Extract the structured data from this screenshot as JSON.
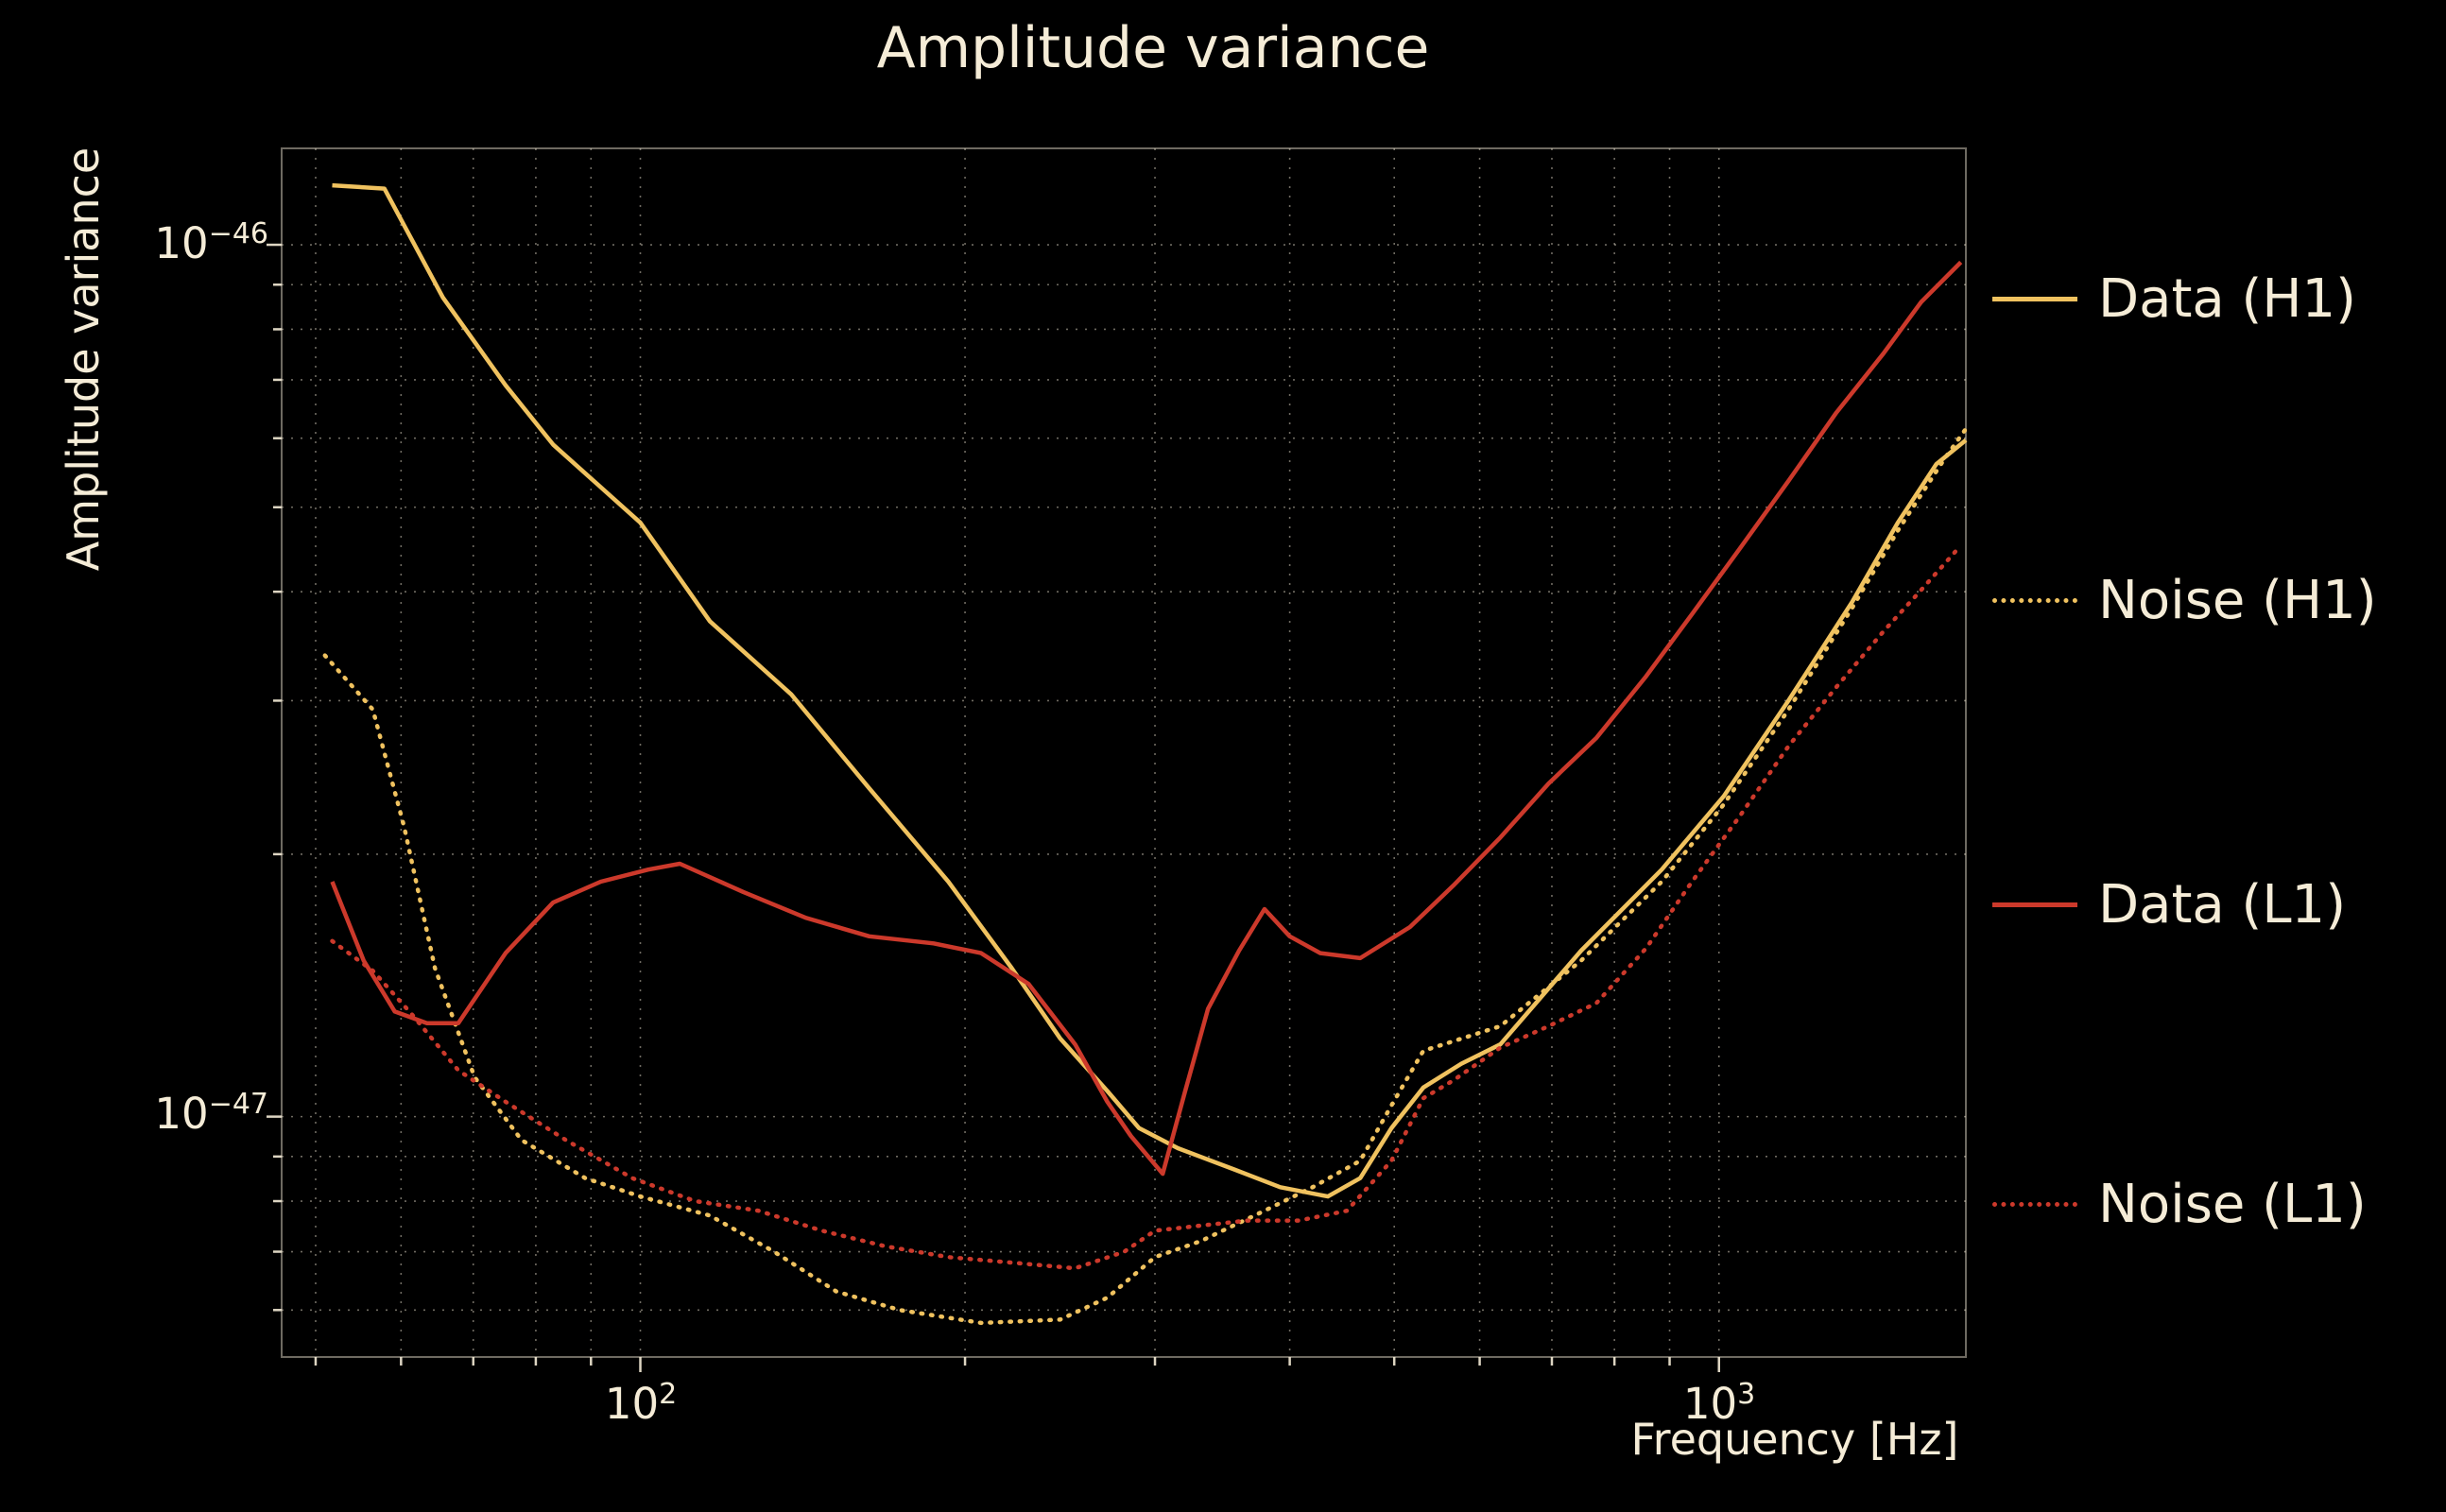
{
  "figure": {
    "title": "Amplitude variance",
    "xlabel": "Frequency [Hz]",
    "ylabel": "Amplitude variance",
    "background_color": "#000000",
    "text_color": "#f5ecd7"
  },
  "tick_labels": {
    "x": [
      {
        "base": "10",
        "exp": "2"
      },
      {
        "base": "10",
        "exp": "3"
      }
    ],
    "y": [
      {
        "base": "10",
        "exp": "−46"
      },
      {
        "base": "10",
        "exp": "−47"
      }
    ]
  },
  "chart_data": {
    "type": "line",
    "title": "Amplitude variance",
    "xlabel": "Frequency [Hz]",
    "ylabel": "Amplitude variance",
    "x_scale": "log",
    "y_scale": "log",
    "xlim": [
      46.5,
      1694
    ],
    "ylim": [
      5.3e-48,
      1.29e-46
    ],
    "grid": {
      "style": "dotted",
      "color": "#ddd5c3"
    },
    "legend_position": "right-outside",
    "x_ticks_major": [
      100,
      1000
    ],
    "x_ticks_minor": [
      50,
      60,
      70,
      80,
      90,
      200,
      300,
      400,
      500,
      600,
      700,
      800,
      900
    ],
    "y_ticks_major": [
      1e-46,
      1e-47
    ],
    "y_ticks_minor": [
      9e-47,
      8e-47,
      7e-47,
      6e-47,
      5e-47,
      4e-47,
      3e-47,
      2e-47,
      9e-48,
      8e-48,
      7e-48,
      6e-48
    ],
    "series": [
      {
        "name": "Data (H1)",
        "color": "#f0c25f",
        "style": "solid",
        "points": [
          [
            51.8,
            1.17e-46
          ],
          [
            57.9,
            1.16e-46
          ],
          [
            65.6,
            8.7e-47
          ],
          [
            75,
            6.9e-47
          ],
          [
            83,
            5.9e-47
          ],
          [
            100,
            4.8e-47
          ],
          [
            116,
            3.7e-47
          ],
          [
            138,
            3.05e-47
          ],
          [
            163,
            2.38e-47
          ],
          [
            193,
            1.86e-47
          ],
          [
            221,
            1.48e-47
          ],
          [
            245,
            1.23e-47
          ],
          [
            271,
            1.07e-47
          ],
          [
            290,
            9.7e-48
          ],
          [
            315,
            9.2e-48
          ],
          [
            355,
            8.7e-48
          ],
          [
            392,
            8.3e-48
          ],
          [
            434,
            8.1e-48
          ],
          [
            465,
            8.5e-48
          ],
          [
            497,
            9.7e-48
          ],
          [
            532,
            1.08e-47
          ],
          [
            577,
            1.15e-47
          ],
          [
            627,
            1.21e-47
          ],
          [
            745,
            1.55e-47
          ],
          [
            885,
            1.92e-47
          ],
          [
            1010,
            2.33e-47
          ],
          [
            1160,
            3e-47
          ],
          [
            1330,
            3.9e-47
          ],
          [
            1465,
            4.8e-47
          ],
          [
            1590,
            5.6e-47
          ],
          [
            1694,
            5.97e-47
          ]
        ]
      },
      {
        "name": "Noise (H1)",
        "color": "#f0c25f",
        "style": "dotted",
        "points": [
          [
            51,
            3.38e-47
          ],
          [
            56.5,
            2.93e-47
          ],
          [
            60.4,
            2.15e-47
          ],
          [
            64.5,
            1.48e-47
          ],
          [
            70.2,
            1.11e-47
          ],
          [
            77.6,
            9.4e-48
          ],
          [
            88.9,
            8.5e-48
          ],
          [
            100,
            8.1e-48
          ],
          [
            116,
            7.7e-48
          ],
          [
            133,
            7e-48
          ],
          [
            152,
            6.3e-48
          ],
          [
            174,
            6e-48
          ],
          [
            207,
            5.8e-48
          ],
          [
            245,
            5.85e-48
          ],
          [
            271,
            6.2e-48
          ],
          [
            300,
            6.9e-48
          ],
          [
            331,
            7.2e-48
          ],
          [
            379,
            7.8e-48
          ],
          [
            420,
            8.3e-48
          ],
          [
            465,
            8.9e-48
          ],
          [
            497,
            1.03e-47
          ],
          [
            532,
            1.19e-47
          ],
          [
            567,
            1.22e-47
          ],
          [
            627,
            1.27e-47
          ],
          [
            745,
            1.51e-47
          ],
          [
            885,
            1.86e-47
          ],
          [
            1010,
            2.28e-47
          ],
          [
            1160,
            2.93e-47
          ],
          [
            1330,
            3.84e-47
          ],
          [
            1465,
            4.7e-47
          ],
          [
            1615,
            5.66e-47
          ],
          [
            1694,
            6.15e-47
          ]
        ]
      },
      {
        "name": "Data (L1)",
        "color": "#cc392b",
        "style": "solid",
        "points": [
          [
            51.8,
            1.86e-47
          ],
          [
            55.4,
            1.51e-47
          ],
          [
            59.2,
            1.32e-47
          ],
          [
            63.4,
            1.28e-47
          ],
          [
            67.8,
            1.28e-47
          ],
          [
            75,
            1.54e-47
          ],
          [
            83,
            1.76e-47
          ],
          [
            91.9,
            1.86e-47
          ],
          [
            101.7,
            1.92e-47
          ],
          [
            108.8,
            1.95e-47
          ],
          [
            124.6,
            1.81e-47
          ],
          [
            142.5,
            1.69e-47
          ],
          [
            163,
            1.61e-47
          ],
          [
            187,
            1.58e-47
          ],
          [
            207,
            1.54e-47
          ],
          [
            229,
            1.42e-47
          ],
          [
            253,
            1.21e-47
          ],
          [
            271,
            1.04e-47
          ],
          [
            285,
            9.5e-48
          ],
          [
            305,
            8.6e-48
          ],
          [
            320,
            1.07e-47
          ],
          [
            336,
            1.33e-47
          ],
          [
            359,
            1.55e-47
          ],
          [
            379,
            1.73e-47
          ],
          [
            400,
            1.61e-47
          ],
          [
            427,
            1.54e-47
          ],
          [
            465,
            1.52e-47
          ],
          [
            517,
            1.65e-47
          ],
          [
            567,
            1.84e-47
          ],
          [
            627,
            2.09e-47
          ],
          [
            695,
            2.41e-47
          ],
          [
            770,
            2.72e-47
          ],
          [
            856,
            3.2e-47
          ],
          [
            944,
            3.77e-47
          ],
          [
            1045,
            4.48e-47
          ],
          [
            1160,
            5.36e-47
          ],
          [
            1285,
            6.42e-47
          ],
          [
            1420,
            7.5e-47
          ],
          [
            1540,
            8.6e-47
          ],
          [
            1676,
            9.55e-47
          ]
        ]
      },
      {
        "name": "Noise (L1)",
        "color": "#cc392b",
        "style": "dotted",
        "points": [
          [
            51.8,
            1.59e-47
          ],
          [
            56.5,
            1.47e-47
          ],
          [
            61.4,
            1.31e-47
          ],
          [
            67.8,
            1.13e-47
          ],
          [
            75,
            1.04e-47
          ],
          [
            85.3,
            9.4e-48
          ],
          [
            98.3,
            8.5e-48
          ],
          [
            112.4,
            8e-48
          ],
          [
            128.7,
            7.8e-48
          ],
          [
            147.3,
            7.4e-48
          ],
          [
            168.7,
            7.1e-48
          ],
          [
            193,
            6.9e-48
          ],
          [
            221,
            6.8e-48
          ],
          [
            253,
            6.7e-48
          ],
          [
            281,
            7e-48
          ],
          [
            300,
            7.4e-48
          ],
          [
            331,
            7.5e-48
          ],
          [
            365,
            7.6e-48
          ],
          [
            408,
            7.6e-48
          ],
          [
            452,
            7.8e-48
          ],
          [
            497,
            8.9e-48
          ],
          [
            532,
            1.05e-47
          ],
          [
            567,
            1.1e-47
          ],
          [
            627,
            1.2e-47
          ],
          [
            695,
            1.27e-47
          ],
          [
            770,
            1.35e-47
          ],
          [
            856,
            1.56e-47
          ],
          [
            944,
            1.86e-47
          ],
          [
            1045,
            2.21e-47
          ],
          [
            1160,
            2.66e-47
          ],
          [
            1285,
            3.11e-47
          ],
          [
            1420,
            3.6e-47
          ],
          [
            1540,
            4.02e-47
          ],
          [
            1676,
            4.52e-47
          ]
        ]
      }
    ]
  }
}
